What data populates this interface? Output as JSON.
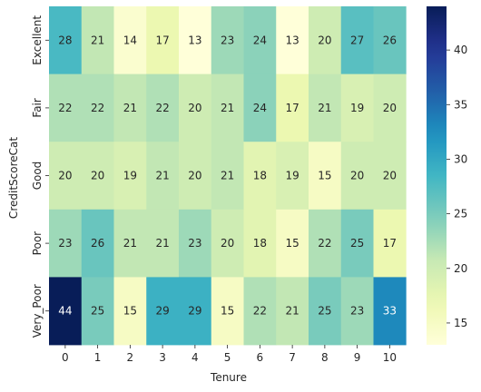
{
  "chart_data": {
    "type": "heatmap",
    "xlabel": "Tenure",
    "ylabel": "CreditScoreCat",
    "x_categories": [
      "0",
      "1",
      "2",
      "3",
      "4",
      "5",
      "6",
      "7",
      "8",
      "9",
      "10"
    ],
    "y_categories": [
      "Excellent",
      "Fair",
      "Good",
      "Poor",
      "Very_Poor"
    ],
    "values": [
      [
        28,
        21,
        14,
        17,
        13,
        23,
        24,
        13,
        20,
        27,
        26
      ],
      [
        22,
        22,
        21,
        22,
        20,
        21,
        24,
        17,
        21,
        19,
        20
      ],
      [
        20,
        20,
        19,
        21,
        20,
        21,
        18,
        19,
        15,
        20,
        20
      ],
      [
        23,
        26,
        21,
        21,
        23,
        20,
        18,
        15,
        22,
        25,
        17
      ],
      [
        44,
        25,
        15,
        29,
        29,
        15,
        22,
        21,
        25,
        23,
        33
      ]
    ],
    "colormap": "YlGnBu",
    "vmin": 13,
    "vmax": 44,
    "colorbar_ticks": [
      15,
      20,
      25,
      30,
      35,
      40
    ],
    "annotated": true,
    "grid": false
  }
}
